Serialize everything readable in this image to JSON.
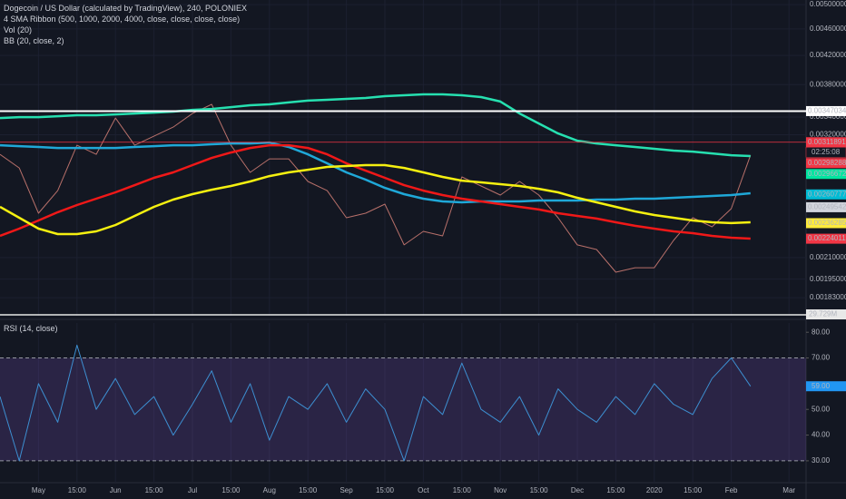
{
  "chart_data": {
    "type": "line",
    "title": "Dogecoin / US Dollar (calculated by TradingView), 240, POLONIEX",
    "indicators": [
      "4 SMA Ribbon (500, 1000, 2000, 4000, close, close, close, close)",
      "Vol (20)",
      "BB (20, close, 2)"
    ],
    "categories": [
      null,
      null,
      "May",
      null,
      "15:00",
      null,
      "Jun",
      null,
      "15:00",
      null,
      "Jul",
      null,
      "15:00",
      null,
      "Aug",
      null,
      "15:00",
      null,
      "Sep",
      null,
      "15:00",
      null,
      "Oct",
      null,
      "15:00",
      null,
      "Nov",
      null,
      "15:00",
      null,
      "Dec",
      null,
      "15:00",
      null,
      "2020",
      null,
      "15:00",
      null,
      "Feb",
      null,
      null,
      "Mar"
    ],
    "log_scale": true,
    "grid": true,
    "ylim": [
      0.00172,
      0.00508
    ],
    "yticks": [
      {
        "value": 0.005,
        "label": "0.00500000"
      },
      {
        "value": 0.0046,
        "label": "0.00460000"
      },
      {
        "value": 0.0042,
        "label": "0.00420000"
      },
      {
        "value": 0.0038,
        "label": "0.00380000"
      },
      {
        "value": 0.0034,
        "label": "0.00340000"
      },
      {
        "value": 0.0032,
        "label": "0.00320000"
      },
      {
        "value": 0.0021,
        "label": "0.00210000"
      },
      {
        "value": 0.00195,
        "label": "0.00195000"
      },
      {
        "value": 0.00183,
        "label": "0.00183000"
      }
    ],
    "series": [
      {
        "color": "#b8706a",
        "values": [
          0.002992,
          0.002856,
          0.002445,
          0.002642,
          0.003087,
          0.002992,
          0.003389,
          0.003087,
          0.003184,
          0.003285,
          0.003442,
          0.003552,
          0.003087,
          0.002812,
          0.002946,
          0.002946,
          0.002726,
          0.002642,
          0.002407,
          0.002445,
          0.002522,
          0.002193,
          0.002297,
          0.002262,
          0.002769,
          0.002684,
          0.002602,
          0.002726,
          0.002602,
          0.002407,
          0.002193,
          0.002159,
          0.001997,
          0.002028,
          0.002028,
          0.002227,
          0.002407,
          0.002333,
          0.002483,
          0.002983,
          null,
          null
        ]
      },
      {
        "color": "#26e0b0",
        "values": [
          0.003389,
          0.003399,
          0.003399,
          0.00341,
          0.003421,
          0.003421,
          0.003431,
          0.003442,
          0.003453,
          0.003464,
          0.003485,
          0.003496,
          0.003518,
          0.003541,
          0.003552,
          0.003575,
          0.003597,
          0.003607,
          0.003619,
          0.00363,
          0.003653,
          0.003664,
          0.003675,
          0.003675,
          0.003664,
          0.003641,
          0.003586,
          0.003442,
          0.003326,
          0.003214,
          0.003135,
          0.003106,
          0.003087,
          0.003068,
          0.003049,
          0.00303,
          0.00302,
          0.003001,
          0.002983,
          0.002974,
          null,
          null
        ]
      },
      {
        "color": "#1fa8d8",
        "values": [
          0.003087,
          0.003077,
          0.003068,
          0.003058,
          0.003058,
          0.003058,
          0.003058,
          0.003068,
          0.003077,
          0.003087,
          0.003087,
          0.003097,
          0.003106,
          0.003106,
          0.003116,
          0.003068,
          0.002992,
          0.002901,
          0.002812,
          0.002743,
          0.002667,
          0.00261,
          0.00257,
          0.002546,
          0.002538,
          0.002546,
          0.002546,
          0.002546,
          0.002554,
          0.002554,
          0.002554,
          0.002562,
          0.002562,
          0.00257,
          0.00257,
          0.002578,
          0.002586,
          0.002594,
          0.002602,
          0.002618,
          null,
          null
        ]
      },
      {
        "color": "#f01818",
        "values": [
          0.002262,
          0.002319,
          0.002385,
          0.002453,
          0.002514,
          0.00257,
          0.002626,
          0.002692,
          0.00276,
          0.002812,
          0.002883,
          0.002955,
          0.003011,
          0.003058,
          0.003087,
          0.003087,
          0.003058,
          0.002992,
          0.002901,
          0.002829,
          0.00276,
          0.002692,
          0.002642,
          0.002602,
          0.00257,
          0.002546,
          0.002522,
          0.002499,
          0.002476,
          0.002445,
          0.002422,
          0.0024,
          0.00237,
          0.002341,
          0.002319,
          0.002297,
          0.002283,
          0.002262,
          0.002248,
          0.002241,
          null,
          null
        ]
      },
      {
        "color": "#f5f010",
        "values": [
          0.002499,
          0.002407,
          0.002319,
          0.002276,
          0.002276,
          0.002297,
          0.002348,
          0.002422,
          0.002499,
          0.002562,
          0.00261,
          0.00265,
          0.002684,
          0.002726,
          0.002777,
          0.002812,
          0.002838,
          0.002865,
          0.002874,
          0.002883,
          0.002883,
          0.002856,
          0.002812,
          0.002769,
          0.002734,
          0.002718,
          0.002701,
          0.002684,
          0.002658,
          0.002626,
          0.002578,
          0.002538,
          0.002499,
          0.00246,
          0.00243,
          0.002407,
          0.002385,
          0.00237,
          0.002363,
          0.00237,
          null,
          null
        ]
      }
    ],
    "price_labels": [
      {
        "value": 0.00347034,
        "label": "0.00347034",
        "color": "#ffffff",
        "line": true
      },
      {
        "value": 0.00311891,
        "label": "0.00311891",
        "color": "#f23645",
        "line": true
      },
      {
        "value": 0.00298288,
        "label": "0.00298288",
        "color": "#f23645"
      },
      {
        "value": 0.00296672,
        "label": "0.00296672",
        "color": "#00e5a0"
      },
      {
        "value": 0.00260777,
        "label": "0.00260777",
        "color": "#00bcd4"
      },
      {
        "value": 0.00249542,
        "label": "0.00249542",
        "color": "#d1d4dc"
      },
      {
        "value": 0.00236285,
        "label": "0.00236285",
        "color": "#ffeb3b"
      },
      {
        "value": 0.00224011,
        "label": "0.00224011",
        "color": "#f23645"
      }
    ],
    "countdown": "02:25:08",
    "volume_label": "29.729M",
    "rsi": {
      "title": "RSI (14, close)",
      "color": "#3d8fd1",
      "band": [
        30,
        70
      ],
      "ylim": [
        21.5,
        83.6
      ],
      "yticks": [
        {
          "value": 30,
          "label": "30.00"
        },
        {
          "value": 40,
          "label": "40.00"
        },
        {
          "value": 50,
          "label": "50.00"
        },
        {
          "value": 70,
          "label": "70.00"
        },
        {
          "value": 80,
          "label": "80.00"
        }
      ],
      "values": [
        55,
        30,
        60,
        45,
        75,
        50,
        62,
        48,
        55,
        40,
        52,
        65,
        45,
        60,
        38,
        55,
        50,
        60,
        45,
        58,
        50,
        30,
        55,
        48,
        68,
        50,
        45,
        55,
        40,
        58,
        50,
        45,
        55,
        48,
        60,
        52,
        48,
        62,
        70,
        59,
        null,
        null
      ],
      "last_label": {
        "value": 59,
        "label": "59.00"
      }
    }
  }
}
